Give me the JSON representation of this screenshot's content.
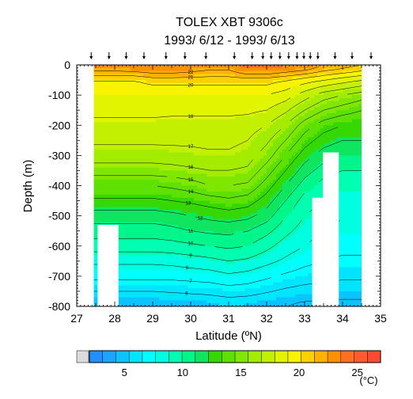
{
  "chart_data": {
    "type": "heatmap",
    "title": "TOLEX XBT 9306c",
    "subtitle": "1993/ 6/12 - 1993/ 6/13",
    "xlabel": "Latitude (ºN)",
    "ylabel": "Depth (m)",
    "xlim": [
      27,
      35
    ],
    "ylim": [
      -800,
      0
    ],
    "x_ticks": [
      "27",
      "28",
      "29",
      "30",
      "31",
      "32",
      "33",
      "34",
      "35"
    ],
    "y_ticks": [
      "0",
      "-100",
      "-200",
      "-300",
      "-400",
      "-500",
      "-600",
      "-700",
      "-800"
    ],
    "colorbar": {
      "unit": "(°C)",
      "tick_labels": [
        "5",
        "10",
        "15",
        "20",
        "25"
      ],
      "tick_values": [
        5,
        10,
        15,
        20,
        25
      ],
      "range": [
        2,
        27
      ],
      "colors": [
        "#1f90ff",
        "#1aa6ff",
        "#0bc4ff",
        "#00e5ff",
        "#00ffff",
        "#00ffe0",
        "#00ffb0",
        "#00f58a",
        "#10e560",
        "#35d800",
        "#5ee000",
        "#7fe600",
        "#a3ec00",
        "#c3f000",
        "#e1f400",
        "#f9f200",
        "#ffd000",
        "#ffb000",
        "#ff9000",
        "#ff7020",
        "#ff5a30",
        "#ff4a30"
      ]
    },
    "station_latitudes": [
      27.38,
      27.85,
      28.3,
      28.77,
      29.35,
      29.85,
      30.4,
      31.15,
      31.62,
      31.9,
      32.12,
      32.35,
      32.58,
      32.8,
      32.98,
      33.15,
      33.35,
      33.8,
      34.25,
      34.75
    ],
    "contour_levels": [
      5,
      6,
      7,
      8,
      9,
      10,
      11,
      12,
      13,
      14,
      15,
      16,
      17,
      18,
      19,
      20,
      21,
      22
    ],
    "temperature_field": {
      "latitudes": [
        27.5,
        28.0,
        28.5,
        29.0,
        29.5,
        30.0,
        30.5,
        31.0,
        31.5,
        32.0,
        32.5,
        33.0,
        33.5,
        34.0,
        34.5
      ],
      "depths": [
        -5,
        -50,
        -100,
        -150,
        -200,
        -250,
        -300,
        -350,
        -400,
        -450,
        -500,
        -550,
        -600,
        -650,
        -700,
        -750,
        -790
      ],
      "values": [
        [
          23.0,
          23.0,
          23.2,
          23.5,
          23.5,
          23.0,
          22.5,
          22.5,
          24.0,
          24.0,
          23.5,
          23.0,
          22.0,
          21.5,
          21.0
        ],
        [
          20.0,
          20.0,
          20.0,
          20.5,
          20.5,
          20.5,
          20.5,
          20.5,
          20.5,
          20.5,
          20.0,
          19.5,
          19.0,
          18.5,
          18.0
        ],
        [
          19.0,
          19.0,
          19.0,
          19.0,
          19.0,
          19.0,
          19.0,
          19.0,
          19.0,
          19.0,
          18.5,
          17.5,
          16.5,
          16.0,
          15.5
        ],
        [
          18.2,
          18.2,
          18.2,
          18.2,
          18.2,
          18.2,
          18.2,
          18.2,
          18.2,
          18.0,
          17.2,
          16.0,
          15.0,
          14.5,
          14.0
        ],
        [
          17.8,
          17.8,
          17.8,
          17.8,
          17.7,
          17.7,
          17.7,
          17.7,
          17.5,
          17.0,
          16.0,
          14.5,
          13.5,
          13.0,
          13.0
        ],
        [
          17.2,
          17.2,
          17.2,
          17.2,
          17.2,
          17.2,
          17.3,
          17.3,
          17.0,
          16.2,
          15.0,
          13.5,
          12.5,
          12.0,
          12.0
        ],
        [
          16.5,
          16.5,
          16.5,
          16.5,
          16.6,
          16.7,
          16.8,
          16.8,
          16.5,
          15.5,
          14.0,
          12.5,
          11.5,
          11.0,
          11.0
        ],
        [
          15.5,
          15.5,
          15.5,
          15.5,
          15.6,
          15.8,
          16.0,
          16.0,
          15.8,
          14.5,
          13.0,
          11.5,
          10.5,
          10.0,
          10.0
        ],
        [
          14.0,
          14.0,
          14.0,
          14.0,
          14.2,
          14.5,
          15.0,
          15.0,
          14.8,
          13.5,
          12.0,
          10.5,
          9.5,
          9.0,
          9.0
        ],
        [
          12.8,
          12.8,
          12.8,
          12.8,
          13.0,
          13.2,
          13.5,
          13.8,
          13.5,
          12.5,
          11.0,
          9.5,
          9.0,
          8.5,
          8.5
        ],
        [
          11.5,
          11.5,
          11.5,
          11.5,
          11.7,
          12.0,
          12.3,
          12.5,
          12.3,
          11.5,
          10.0,
          9.0,
          8.5,
          8.0,
          8.0
        ],
        [
          10.5,
          10.5,
          10.5,
          10.5,
          10.7,
          11.0,
          11.2,
          11.3,
          11.0,
          10.3,
          9.3,
          8.5,
          8.0,
          7.8,
          7.8
        ],
        [
          9.5,
          9.5,
          9.5,
          9.5,
          9.6,
          9.8,
          10.0,
          10.2,
          10.0,
          9.3,
          8.5,
          8.0,
          7.5,
          7.3,
          7.3
        ],
        [
          8.2,
          8.2,
          8.2,
          8.2,
          8.3,
          8.5,
          8.7,
          9.0,
          8.8,
          8.3,
          7.8,
          7.3,
          7.0,
          6.8,
          6.8
        ],
        [
          7.3,
          7.3,
          7.3,
          7.3,
          7.3,
          7.4,
          7.5,
          7.8,
          7.6,
          7.2,
          6.8,
          6.5,
          6.3,
          6.2,
          6.2
        ],
        [
          6.0,
          6.0,
          6.0,
          6.0,
          6.1,
          6.2,
          6.3,
          6.5,
          6.4,
          6.1,
          5.8,
          5.6,
          5.5,
          5.4,
          5.4
        ],
        [
          5.0,
          5.0,
          5.0,
          5.0,
          5.1,
          5.2,
          5.3,
          5.5,
          5.4,
          5.2,
          5.0,
          4.9,
          4.8,
          4.8,
          4.8
        ]
      ]
    },
    "missing_data_regions": [
      {
        "lat": [
          27.0,
          27.45
        ],
        "depth": [
          0,
          -800
        ]
      },
      {
        "lat": [
          27.55,
          28.1
        ],
        "depth": [
          -530,
          -800
        ]
      },
      {
        "lat": [
          33.2,
          33.48
        ],
        "depth": [
          -440,
          -800
        ]
      },
      {
        "lat": [
          33.48,
          33.9
        ],
        "depth": [
          -290,
          -800
        ]
      },
      {
        "lat": [
          34.5,
          35.0
        ],
        "depth": [
          0,
          -800
        ]
      }
    ]
  }
}
